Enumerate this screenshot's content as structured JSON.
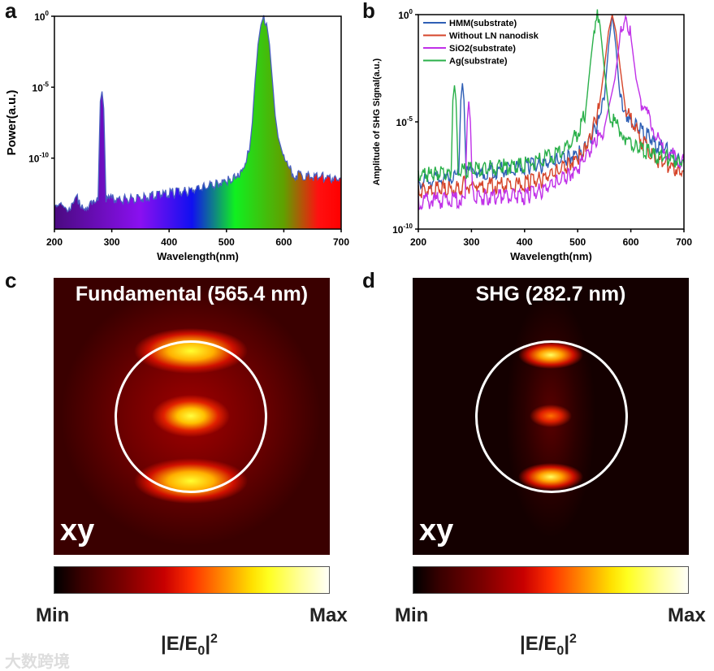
{
  "panels": {
    "a": "a",
    "b": "b",
    "c": "c",
    "d": "d"
  },
  "chart_data": [
    {
      "type": "area",
      "panel": "a",
      "xlabel": "Wavelength(nm)",
      "ylabel": "Power(a.u.)",
      "xlim": [
        200,
        700
      ],
      "ylim_log10": [
        -15,
        0
      ],
      "xticks": [
        200,
        300,
        400,
        500,
        600,
        700
      ],
      "yticks": [
        {
          "v": 0,
          "label": "10",
          "exp": "0"
        },
        {
          "v": -5,
          "label": "10",
          "exp": "-5"
        },
        {
          "v": -10,
          "label": "10",
          "exp": "-10"
        }
      ],
      "fill": "visible-spectrum gradient",
      "line_color": "#4a5fc0",
      "x": [
        200,
        210,
        220,
        230,
        240,
        245,
        250,
        260,
        270,
        276,
        280,
        283,
        286,
        290,
        300,
        350,
        400,
        450,
        500,
        520,
        530,
        540,
        545,
        550,
        555,
        560,
        565,
        570,
        575,
        580,
        585,
        590,
        600,
        610,
        620,
        650,
        700
      ],
      "log10_y": [
        -13.6,
        -13.3,
        -13.4,
        -13.5,
        -12.8,
        -13.2,
        -13.5,
        -13.3,
        -13.3,
        -13,
        -6,
        -5.3,
        -6.5,
        -13,
        -12.9,
        -12.8,
        -12.5,
        -12.2,
        -11.6,
        -11.2,
        -10.5,
        -9.5,
        -7.5,
        -4.5,
        -2,
        -0.6,
        0,
        -0.5,
        -2,
        -4.5,
        -7,
        -8.5,
        -10,
        -10.8,
        -11.2,
        -11.3,
        -11.4
      ]
    },
    {
      "type": "line",
      "panel": "b",
      "xlabel": "Wavelength(nm)",
      "ylabel": "Amplitude of SHG Signal(a.u.)",
      "xlim": [
        200,
        700
      ],
      "ylim_log10": [
        -10,
        0
      ],
      "xticks": [
        200,
        300,
        400,
        500,
        600,
        700
      ],
      "yticks": [
        {
          "v": 0,
          "label": "10",
          "exp": "0"
        },
        {
          "v": -5,
          "label": "10",
          "exp": "-5"
        },
        {
          "v": -10,
          "label": "10",
          "exp": "-10"
        }
      ],
      "legend_position": "top-left",
      "series": [
        {
          "name": "HMM(substrate)",
          "color": "#2f5fb5",
          "x": [
            200,
            270,
            276,
            280,
            283,
            286,
            290,
            300,
            400,
            450,
            500,
            520,
            540,
            550,
            558,
            565,
            572,
            580,
            600,
            650,
            700
          ],
          "log10_y": [
            -7.8,
            -7.6,
            -7.5,
            -4,
            -3.2,
            -4,
            -7.4,
            -7.4,
            -7.1,
            -6.9,
            -6.5,
            -6,
            -5,
            -4,
            -1.5,
            0,
            -1.5,
            -4,
            -5,
            -6.1,
            -6.8
          ]
        },
        {
          "name": "Without LN nanodisk",
          "color": "#d6452a",
          "x": [
            200,
            283,
            285,
            300,
            400,
            450,
            500,
            520,
            540,
            550,
            558,
            565,
            572,
            580,
            590,
            620,
            650,
            700
          ],
          "log10_y": [
            -8.2,
            -8.1,
            -7.9,
            -8,
            -7.9,
            -7.5,
            -6.7,
            -6,
            -4.4,
            -2.5,
            -0.8,
            0,
            -0.8,
            -2.5,
            -4.4,
            -5.9,
            -6.8,
            -7.3
          ]
        },
        {
          "name": "SiO2(substrate)",
          "color": "#c030e8",
          "x": [
            200,
            288,
            292,
            295,
            298,
            302,
            305,
            400,
            450,
            500,
            550,
            570,
            580,
            590,
            600,
            610,
            620,
            660,
            700
          ],
          "log10_y": [
            -8.7,
            -8.6,
            -5,
            -4.05,
            -5,
            -8.4,
            -8.5,
            -8.5,
            -8,
            -7.2,
            -5.3,
            -3,
            -1,
            0,
            -1,
            -3,
            -4.1,
            -6.3,
            -6.9
          ]
        },
        {
          "name": "Ag(substrate)",
          "color": "#2ab04a",
          "x": [
            200,
            262,
            265,
            268,
            271,
            275,
            400,
            470,
            500,
            515,
            525,
            532,
            537,
            542,
            550,
            560,
            600,
            650,
            700
          ],
          "log10_y": [
            -7.5,
            -7.3,
            -4,
            -3.3,
            -4,
            -7.3,
            -7,
            -6.4,
            -5.6,
            -4.5,
            -2,
            -0.5,
            0,
            -0.5,
            -2.5,
            -4.75,
            -6.1,
            -6.6,
            -6.8
          ]
        }
      ]
    },
    {
      "type": "heatmap",
      "panel": "c",
      "title": "Fundamental (565.4 nm)",
      "plane": "xy",
      "colorbar_min": "Min",
      "colorbar_max": "Max",
      "colorbar_label": "|E/E0|²"
    },
    {
      "type": "heatmap",
      "panel": "d",
      "title": "SHG (282.7 nm)",
      "plane": "xy",
      "colorbar_min": "Min",
      "colorbar_max": "Max",
      "colorbar_label": "|E/E0|²"
    }
  ],
  "unit": {
    "base": "|E/E",
    "sub": "0",
    "tail": "|",
    "sup": "2"
  },
  "watermark": "大数跨境"
}
